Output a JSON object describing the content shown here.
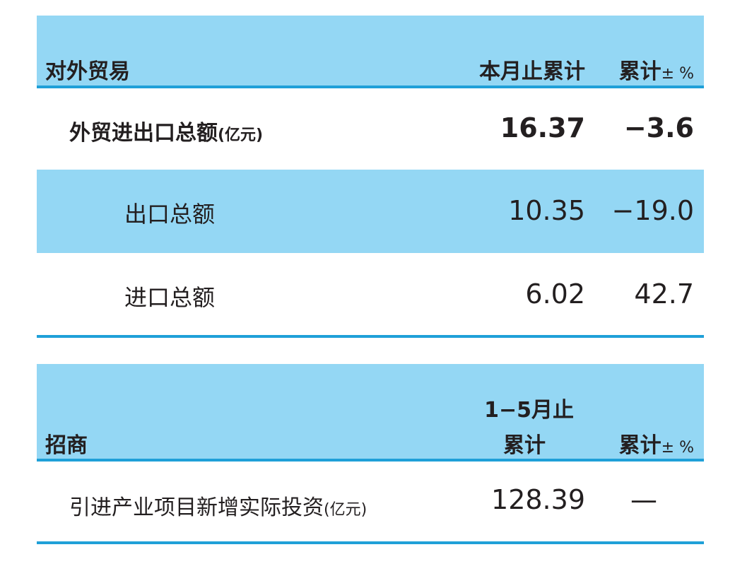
{
  "trade": {
    "title": "对外贸易",
    "col1": "本月止累计",
    "col2": "累计",
    "col2_suffix": "± %",
    "rows": [
      {
        "label": "外贸进出口总额",
        "unit": "(亿元)",
        "value": "16.37",
        "change": "−3.6"
      },
      {
        "label": "出口总额",
        "value": "10.35",
        "change": "−19.0"
      },
      {
        "label": "进口总额",
        "value": "6.02",
        "change": "42.7"
      }
    ]
  },
  "investment": {
    "title": "招商",
    "col1_line1": "1−5月止",
    "col1_line2": "累计",
    "col2": "累计",
    "col2_suffix": "± %",
    "rows": [
      {
        "label": "引进产业项目新增实际投资",
        "unit": "(亿元)",
        "value": "128.39",
        "change": "—"
      }
    ]
  },
  "colors": {
    "band": "#94d7f4",
    "rule": "#1fa0d8"
  }
}
